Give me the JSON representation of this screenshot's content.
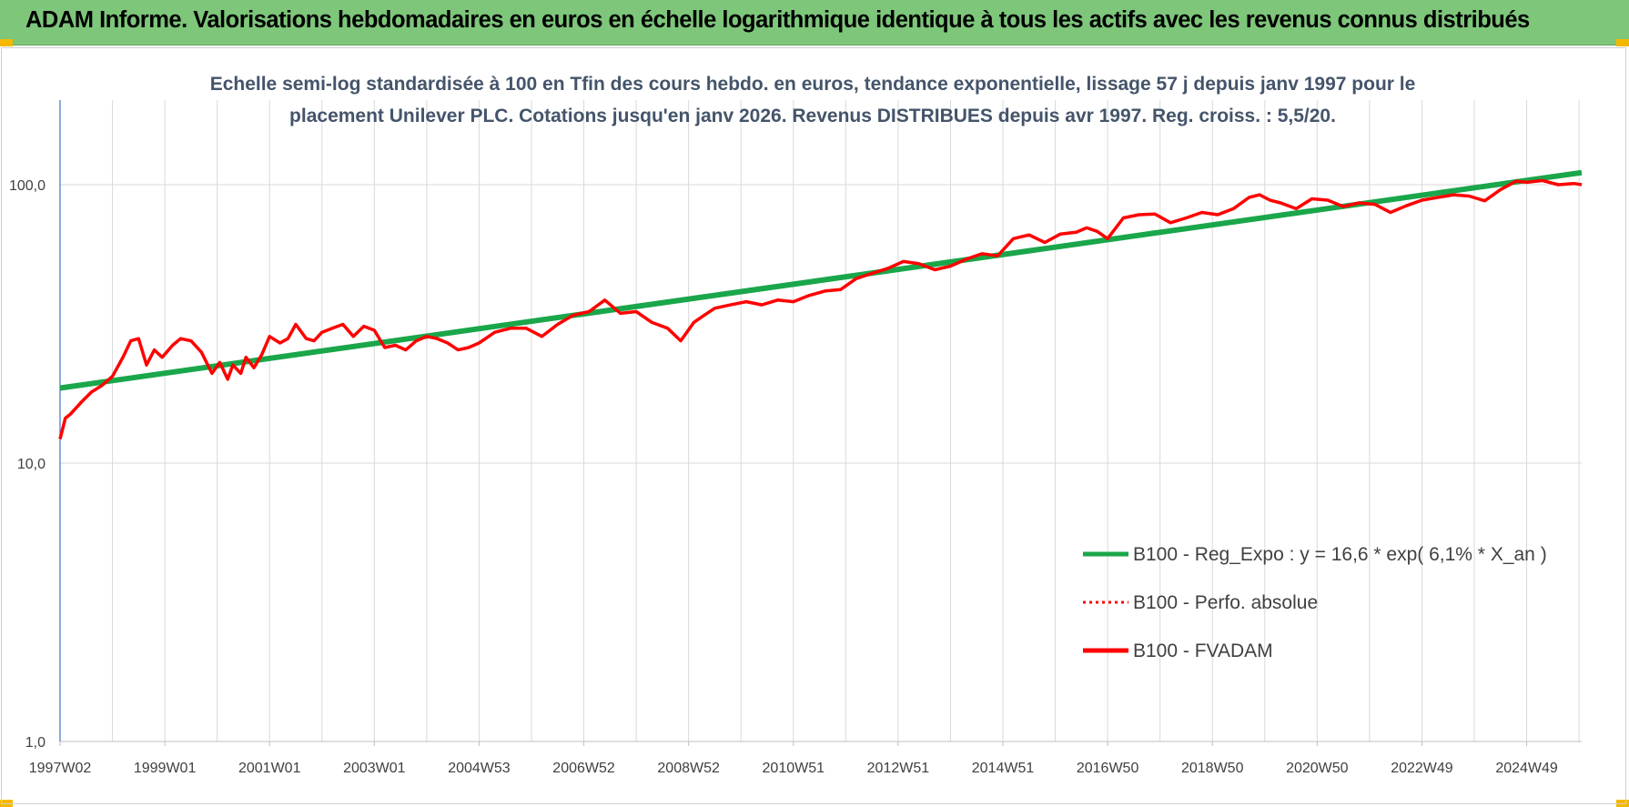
{
  "banner": {
    "title": "ADAM Informe. Valorisations hebdomadaires en euros en échelle logarithmique identique à tous les actifs avec les revenus connus distribués"
  },
  "colors": {
    "banner_bg": "#7dc67a",
    "regression": "#1aa64a",
    "fvadam": "#ff0000",
    "perfo": "#ff0000",
    "subtitle": "#44546a",
    "corner": "#f5b800"
  },
  "chart_data": {
    "type": "line",
    "subtitle_lines": [
      "Echelle semi-log standardisée à 100 en Tfin des cours hebdo. en euros, tendance exponentielle, lissage 57 j depuis janv 1997 pour le",
      "placement Unilever PLC. Cotations jusqu'en janv 2026. Revenus DISTRIBUES depuis avr 1997. Reg. croiss. : 5,5/20."
    ],
    "y_scale": "log",
    "ylim": [
      1,
      100
    ],
    "y_ticks": [
      {
        "value": 1,
        "label": "1,0"
      },
      {
        "value": 10,
        "label": "10,0"
      },
      {
        "value": 100,
        "label": "100,0"
      }
    ],
    "xlim": [
      1997.0,
      2026.05
    ],
    "x_ticks": [
      {
        "value": 1997.0,
        "label": "1997W02"
      },
      {
        "value": 1999.0,
        "label": "1999W01"
      },
      {
        "value": 2001.0,
        "label": "2001W01"
      },
      {
        "value": 2003.0,
        "label": "2003W01"
      },
      {
        "value": 2005.0,
        "label": "2004W53"
      },
      {
        "value": 2007.0,
        "label": "2006W52"
      },
      {
        "value": 2009.0,
        "label": "2008W52"
      },
      {
        "value": 2011.0,
        "label": "2010W51"
      },
      {
        "value": 2013.0,
        "label": "2012W51"
      },
      {
        "value": 2015.0,
        "label": "2014W51"
      },
      {
        "value": 2017.0,
        "label": "2016W50"
      },
      {
        "value": 2019.0,
        "label": "2018W50"
      },
      {
        "value": 2021.0,
        "label": "2020W50"
      },
      {
        "value": 2023.0,
        "label": "2022W49"
      },
      {
        "value": 2025.0,
        "label": "2024W49"
      }
    ],
    "grid": true,
    "legend_position": "bottom-right",
    "series": [
      {
        "name": "B100 - Reg_Expo : y = 16,6 * exp( 6,1% *  X_an )",
        "style": "solid-thick",
        "color": "#1aa64a",
        "x": [
          1997.0,
          2026.05
        ],
        "y": [
          18.6,
          110.5
        ]
      },
      {
        "name": "B100 - Perfo. absolue",
        "style": "dotted",
        "color": "#ff0000",
        "x": [],
        "y": []
      },
      {
        "name": "B100 - FVADAM",
        "style": "solid",
        "color": "#ff0000",
        "x": [
          1997.0,
          1997.1,
          1997.2,
          1997.4,
          1997.6,
          1997.8,
          1998.0,
          1998.2,
          1998.35,
          1998.5,
          1998.65,
          1998.8,
          1998.95,
          1999.15,
          1999.3,
          1999.5,
          1999.7,
          1999.9,
          2000.05,
          2000.2,
          2000.3,
          2000.45,
          2000.55,
          2000.7,
          2000.85,
          2001.0,
          2001.2,
          2001.35,
          2001.5,
          2001.7,
          2001.85,
          2002.0,
          2002.2,
          2002.4,
          2002.6,
          2002.8,
          2003.0,
          2003.2,
          2003.4,
          2003.6,
          2003.8,
          2004.0,
          2004.2,
          2004.4,
          2004.6,
          2004.8,
          2005.0,
          2005.3,
          2005.6,
          2005.9,
          2006.2,
          2006.5,
          2006.8,
          2007.1,
          2007.4,
          2007.7,
          2008.0,
          2008.3,
          2008.6,
          2008.85,
          2009.1,
          2009.3,
          2009.5,
          2009.8,
          2010.1,
          2010.4,
          2010.7,
          2011.0,
          2011.3,
          2011.6,
          2011.9,
          2012.2,
          2012.5,
          2012.8,
          2013.1,
          2013.4,
          2013.7,
          2014.0,
          2014.3,
          2014.6,
          2014.9,
          2015.2,
          2015.5,
          2015.8,
          2016.1,
          2016.4,
          2016.6,
          2016.8,
          2017.0,
          2017.3,
          2017.6,
          2017.9,
          2018.2,
          2018.5,
          2018.8,
          2019.1,
          2019.4,
          2019.7,
          2019.9,
          2020.1,
          2020.3,
          2020.6,
          2020.9,
          2021.2,
          2021.5,
          2021.8,
          2022.1,
          2022.4,
          2022.7,
          2023.0,
          2023.3,
          2023.6,
          2023.9,
          2024.2,
          2024.5,
          2024.8,
          2025.0,
          2025.3,
          2025.6,
          2025.9,
          2026.05
        ],
        "y": [
          12.2,
          14.5,
          15.0,
          16.5,
          18.0,
          19.0,
          20.5,
          24.0,
          27.5,
          28.0,
          22.5,
          25.5,
          24.0,
          26.5,
          28.0,
          27.5,
          25.0,
          21.0,
          23.0,
          20.0,
          22.5,
          21.0,
          24.0,
          22.0,
          24.5,
          28.5,
          27.0,
          28.0,
          31.5,
          28.0,
          27.5,
          29.5,
          30.5,
          31.5,
          28.5,
          31.0,
          30.0,
          26.0,
          26.5,
          25.5,
          27.5,
          28.5,
          28.0,
          27.0,
          25.5,
          26.0,
          27.0,
          29.5,
          30.5,
          30.5,
          28.5,
          31.5,
          34.0,
          35.0,
          38.5,
          34.5,
          35.0,
          32.0,
          30.5,
          27.5,
          32.0,
          34.0,
          36.0,
          37.0,
          38.0,
          37.0,
          38.5,
          38.0,
          40.0,
          41.5,
          42.0,
          46.0,
          48.0,
          50.0,
          53.0,
          52.0,
          49.5,
          51.0,
          54.0,
          56.5,
          55.5,
          64.0,
          66.0,
          62.0,
          66.5,
          67.5,
          70.0,
          68.0,
          64.0,
          76.0,
          78.0,
          78.5,
          73.0,
          76.0,
          79.5,
          78.0,
          82.0,
          90.0,
          92.0,
          88.0,
          86.0,
          82.0,
          89.0,
          88.0,
          83.5,
          86.0,
          85.0,
          79.5,
          84.0,
          88.0,
          90.0,
          92.0,
          91.0,
          87.5,
          96.0,
          103.0,
          102.0,
          103.5,
          100.0,
          101.0,
          100.0
        ]
      }
    ]
  }
}
